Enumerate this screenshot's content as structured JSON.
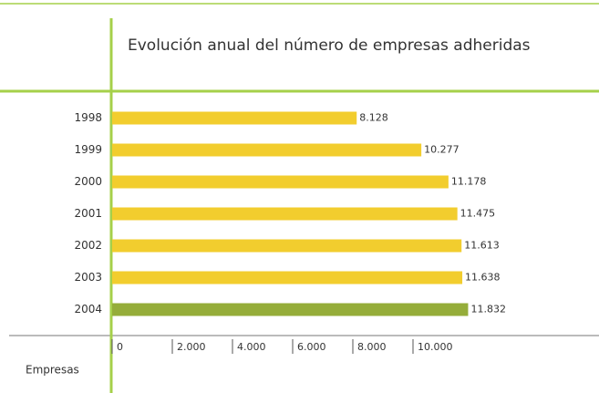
{
  "chart_data": {
    "type": "barh",
    "title": "Evolución anual del número de empresas adheridas",
    "x_label": "Empresas",
    "categories": [
      "1998",
      "1999",
      "2000",
      "2001",
      "2002",
      "2003",
      "2004"
    ],
    "values": [
      8128,
      10277,
      11178,
      11475,
      11613,
      11638,
      11832
    ],
    "value_labels": [
      "8.128",
      "10.277",
      "11.178",
      "11.475",
      "11.613",
      "11.638",
      "11.832"
    ],
    "colors": [
      "#f2cd2e",
      "#f2cd2e",
      "#f2cd2e",
      "#f2cd2e",
      "#f2cd2e",
      "#f2cd2e",
      "#95ad3a"
    ],
    "xlim": [
      0,
      16000
    ],
    "xticks": [
      0,
      {
        "value": 2000,
        "label": "2.000"
      },
      {
        "value": 4000,
        "label": "4.000"
      },
      {
        "value": 6000,
        "label": "6.000"
      },
      {
        "value": 8000,
        "label": "8.000"
      },
      {
        "value": 10000,
        "label": "10.000"
      }
    ]
  }
}
